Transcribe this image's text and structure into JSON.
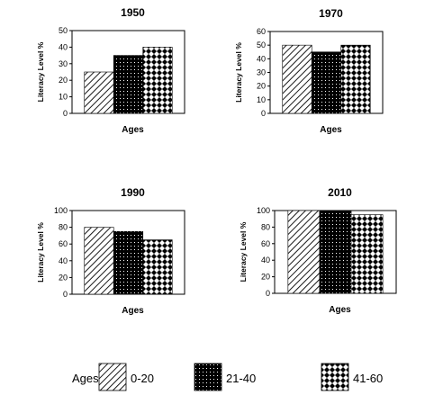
{
  "legend": {
    "title": "Ages",
    "entries": [
      "0-20",
      "21-40",
      "41-60"
    ]
  },
  "chart_data": [
    {
      "type": "bar",
      "title": "1950",
      "xlabel": "Ages",
      "ylabel": "Literacy Level %",
      "ylim": [
        0,
        50
      ],
      "yticks": [
        0,
        10,
        20,
        30,
        40,
        50
      ],
      "series": [
        {
          "name": "0-20",
          "values": [
            25
          ]
        },
        {
          "name": "21-40",
          "values": [
            35
          ]
        },
        {
          "name": "41-60",
          "values": [
            40
          ]
        }
      ]
    },
    {
      "type": "bar",
      "title": "1970",
      "xlabel": "Ages",
      "ylabel": "Literacy Level %",
      "ylim": [
        0,
        60
      ],
      "yticks": [
        0,
        10,
        20,
        30,
        40,
        50,
        60
      ],
      "series": [
        {
          "name": "0-20",
          "values": [
            50
          ]
        },
        {
          "name": "21-40",
          "values": [
            45
          ]
        },
        {
          "name": "41-60",
          "values": [
            50
          ]
        }
      ]
    },
    {
      "type": "bar",
      "title": "1990",
      "xlabel": "Ages",
      "ylabel": "Literacy Level %",
      "ylim": [
        0,
        100
      ],
      "yticks": [
        0,
        20,
        40,
        60,
        80,
        100
      ],
      "series": [
        {
          "name": "0-20",
          "values": [
            80
          ]
        },
        {
          "name": "21-40",
          "values": [
            75
          ]
        },
        {
          "name": "41-60",
          "values": [
            65
          ]
        }
      ]
    },
    {
      "type": "bar",
      "title": "2010",
      "xlabel": "Ages",
      "ylabel": "Literacy Level %",
      "ylim": [
        0,
        100
      ],
      "yticks": [
        0,
        20,
        40,
        60,
        80,
        100
      ],
      "series": [
        {
          "name": "0-20",
          "values": [
            100
          ]
        },
        {
          "name": "21-40",
          "values": [
            100
          ]
        },
        {
          "name": "41-60",
          "values": [
            95
          ]
        }
      ]
    }
  ]
}
